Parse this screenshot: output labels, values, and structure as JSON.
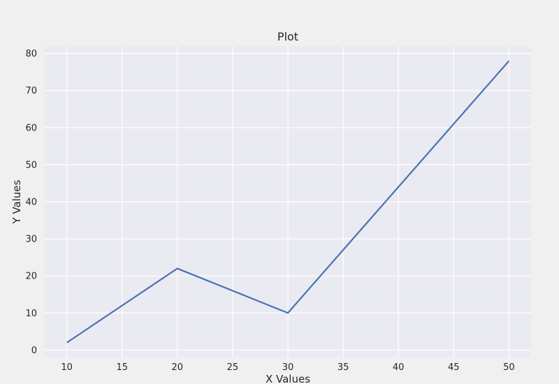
{
  "chart_data": {
    "type": "line",
    "title": "Plot",
    "xlabel": "X Values",
    "ylabel": "Y Values",
    "x": [
      10,
      20,
      30,
      40,
      50
    ],
    "series": [
      {
        "values": [
          2,
          22,
          10,
          44,
          78
        ]
      }
    ],
    "xlim": [
      8,
      52
    ],
    "ylim": [
      -2,
      82
    ],
    "xticks": [
      10,
      15,
      20,
      25,
      30,
      35,
      40,
      45,
      50
    ],
    "yticks": [
      0,
      10,
      20,
      30,
      40,
      50,
      60,
      70,
      80
    ],
    "grid": true,
    "legend": "none",
    "colors": {
      "line": "#4c72b0",
      "plot_background": "#eaeaf2",
      "figure_background": "#f0f0f0",
      "grid": "#ffffff",
      "text": "#262626"
    }
  }
}
